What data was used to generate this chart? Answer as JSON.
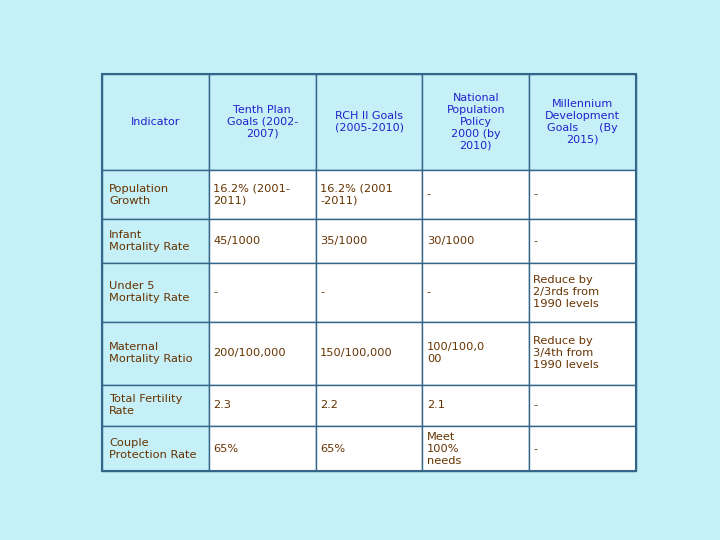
{
  "background_color": "#c5f0f8",
  "header_bg": "#c5f0f8",
  "cell_bg_first": "#c5f0f8",
  "cell_bg_other": "#ffffff",
  "header_text_color": "#2222cc",
  "cell_text_color_first": "#663300",
  "cell_text_color_other": "#663300",
  "border_color": "#336688",
  "headers": [
    "Indicator",
    "Tenth Plan\nGoals (2002-\n2007)",
    "RCH II Goals\n(2005-2010)",
    "National\nPopulation\nPolicy\n2000 (by\n2010)",
    "Millennium\nDevelopment\nGoals      (By\n2015)"
  ],
  "rows": [
    [
      "Population\nGrowth",
      "16.2% (2001-\n2011)",
      "16.2% (2001\n-2011)",
      "-",
      "-"
    ],
    [
      "Infant\nMortality Rate",
      "45/1000",
      "35/1000",
      "30/1000",
      "-"
    ],
    [
      "Under 5\nMortality Rate",
      "-",
      "-",
      "-",
      "Reduce by\n2/3rds from\n1990 levels"
    ],
    [
      "Maternal\nMortality Ratio",
      "200/100,000",
      "150/100,000",
      "100/100,0\n00",
      "Reduce by\n3/4th from\n1990 levels"
    ],
    [
      "Total Fertility\nRate",
      "2.3",
      "2.2",
      "2.1",
      "-"
    ],
    [
      "Couple\nProtection Rate",
      "65%",
      "65%",
      "Meet\n100%\nneeds",
      "-"
    ]
  ],
  "font_size_header": 8.0,
  "font_size_cell": 8.2,
  "fig_width": 7.2,
  "fig_height": 5.4
}
